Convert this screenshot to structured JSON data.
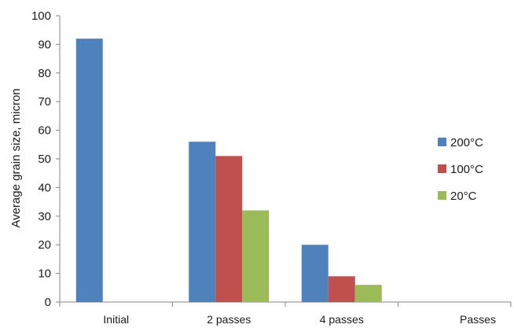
{
  "chart_data": {
    "type": "bar",
    "categories": [
      "Initial",
      "2 passes",
      "4 passes"
    ],
    "series": [
      {
        "name": "200°C",
        "color": "#4F81BD",
        "values": [
          92,
          56,
          20
        ]
      },
      {
        "name": "100°C",
        "color": "#C0504D",
        "values": [
          null,
          51,
          9
        ]
      },
      {
        "name": "20°C",
        "color": "#9BBB59",
        "values": [
          null,
          32,
          6
        ]
      }
    ],
    "ylabel": "Average grain size, micron",
    "xlabel": "Passes",
    "ylim": [
      0,
      100
    ],
    "yticks": [
      0,
      10,
      20,
      30,
      40,
      50,
      60,
      70,
      80,
      90,
      100
    ],
    "legend_position": "right",
    "grid": false
  }
}
